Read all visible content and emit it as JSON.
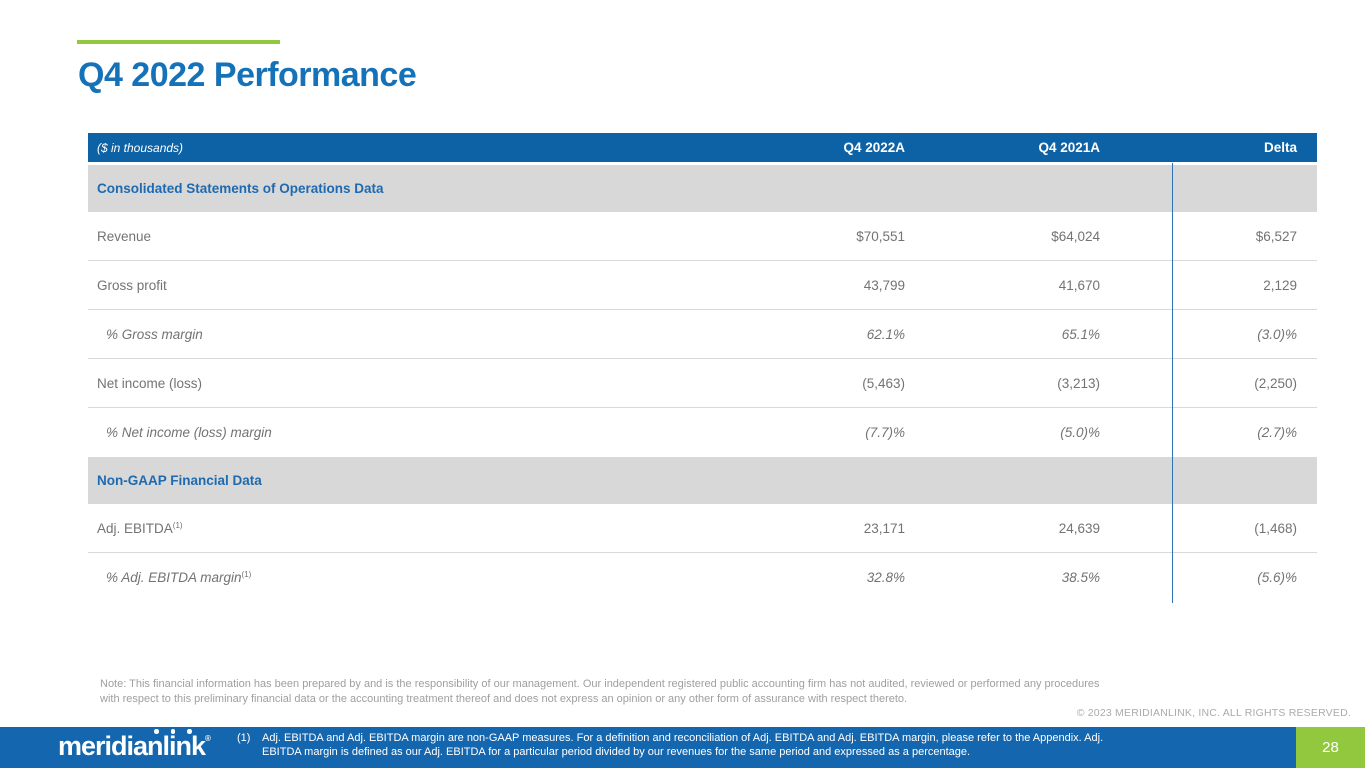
{
  "slide": {
    "title": "Q4 2022 Performance",
    "note": "Note: This financial information has been prepared by and is the responsibility of our management. Our independent registered public accounting firm has not audited, reviewed or performed any procedures with respect to this preliminary financial data or the accounting treatment thereof and does not express an opinion or any other form of assurance with respect thereto.",
    "copyright": "© 2023 MERIDIANLINK, INC. ALL RIGHTS RESERVED.",
    "logo_text": "meridianlink",
    "logo_reg_mark": "®",
    "footnote_number": "(1)",
    "footnote_text": "Adj. EBITDA and Adj. EBITDA margin are non-GAAP measures. For a definition and reconciliation of Adj. EBITDA and Adj. EBITDA margin, please refer to the Appendix. Adj. EBITDA margin is defined as our Adj. EBITDA for a particular period divided by our revenues for the same period and expressed as a percentage.",
    "page_number": "28"
  },
  "table": {
    "unit_label": "($ in thousands)",
    "columns": [
      "Q4 2022A",
      "Q4 2021A",
      "Delta"
    ],
    "rows": [
      {
        "type": "section",
        "label": "Consolidated Statements of Operations Data"
      },
      {
        "type": "data",
        "italic": false,
        "label": "Revenue",
        "values": [
          "$70,551",
          "$64,024",
          "$6,527"
        ]
      },
      {
        "type": "data",
        "italic": false,
        "label": "Gross profit",
        "values": [
          "43,799",
          "41,670",
          "2,129"
        ]
      },
      {
        "type": "data",
        "italic": true,
        "label": "% Gross margin",
        "values": [
          "62.1%",
          "65.1%",
          "(3.0)%"
        ]
      },
      {
        "type": "data",
        "italic": false,
        "label": "Net income (loss)",
        "values": [
          "(5,463)",
          "(3,213)",
          "(2,250)"
        ]
      },
      {
        "type": "data",
        "italic": true,
        "label": "% Net income (loss) margin",
        "values": [
          "(7.7)%",
          "(5.0)%",
          "(2.7)%"
        ]
      },
      {
        "type": "section",
        "label": "Non-GAAP Financial Data"
      },
      {
        "type": "data",
        "italic": false,
        "label": "Adj. EBITDA",
        "sup": "(1)",
        "values": [
          "23,171",
          "24,639",
          "(1,468)"
        ]
      },
      {
        "type": "data",
        "italic": true,
        "label": "% Adj. EBITDA margin",
        "sup": "(1)",
        "values": [
          "32.8%",
          "38.5%",
          "(5.6)%"
        ]
      }
    ]
  },
  "colors": {
    "title_blue": "#1572b8",
    "table_header_blue": "#0d62a6",
    "footer_blue": "#1466af",
    "accent_green": "#92c83e",
    "section_row_gray": "#d8d8d8",
    "divider_blue": "#2e74b5",
    "body_text_gray": "#737373"
  }
}
